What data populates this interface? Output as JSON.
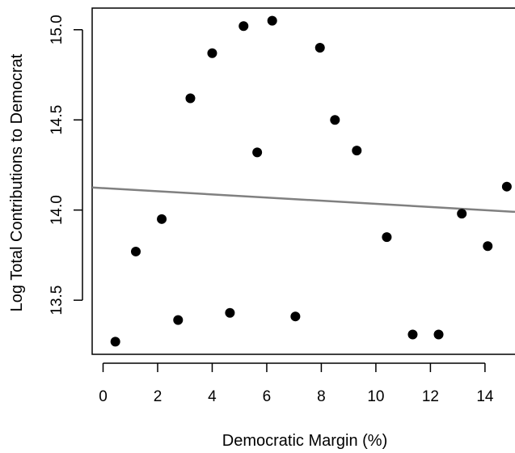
{
  "chart_data": {
    "type": "scatter",
    "xlabel": "Democratic Margin (%)",
    "ylabel": "Log Total Contributions to Democrat",
    "xlim": [
      -0.4,
      15.1
    ],
    "ylim": [
      13.2,
      15.12
    ],
    "xticks": [
      0,
      2,
      4,
      6,
      8,
      10,
      12,
      14
    ],
    "yticks": [
      13.5,
      14.0,
      14.5,
      15.0
    ],
    "xtick_labels": [
      "0",
      "2",
      "4",
      "6",
      "8",
      "10",
      "12",
      "14"
    ],
    "ytick_labels": [
      "13.5",
      "14.0",
      "14.5",
      "15.0"
    ],
    "points": [
      {
        "x": 0.45,
        "y": 13.27
      },
      {
        "x": 1.2,
        "y": 13.77
      },
      {
        "x": 2.15,
        "y": 13.95
      },
      {
        "x": 2.75,
        "y": 13.39
      },
      {
        "x": 3.2,
        "y": 14.62
      },
      {
        "x": 4.0,
        "y": 14.87
      },
      {
        "x": 4.65,
        "y": 13.43
      },
      {
        "x": 5.15,
        "y": 15.02
      },
      {
        "x": 5.65,
        "y": 14.32
      },
      {
        "x": 6.2,
        "y": 15.05
      },
      {
        "x": 7.05,
        "y": 13.41
      },
      {
        "x": 7.95,
        "y": 14.9
      },
      {
        "x": 8.5,
        "y": 14.5
      },
      {
        "x": 9.3,
        "y": 14.33
      },
      {
        "x": 10.4,
        "y": 13.85
      },
      {
        "x": 11.35,
        "y": 13.31
      },
      {
        "x": 12.3,
        "y": 13.31
      },
      {
        "x": 13.15,
        "y": 13.98
      },
      {
        "x": 14.1,
        "y": 13.8
      },
      {
        "x": 14.8,
        "y": 14.13
      }
    ],
    "fit_line": {
      "x": [
        -0.4,
        15.1
      ],
      "y": [
        14.125,
        13.99
      ]
    },
    "grid": false,
    "colors": {
      "points": "#000000",
      "fit_line": "#808080",
      "axes": "#000000"
    }
  }
}
